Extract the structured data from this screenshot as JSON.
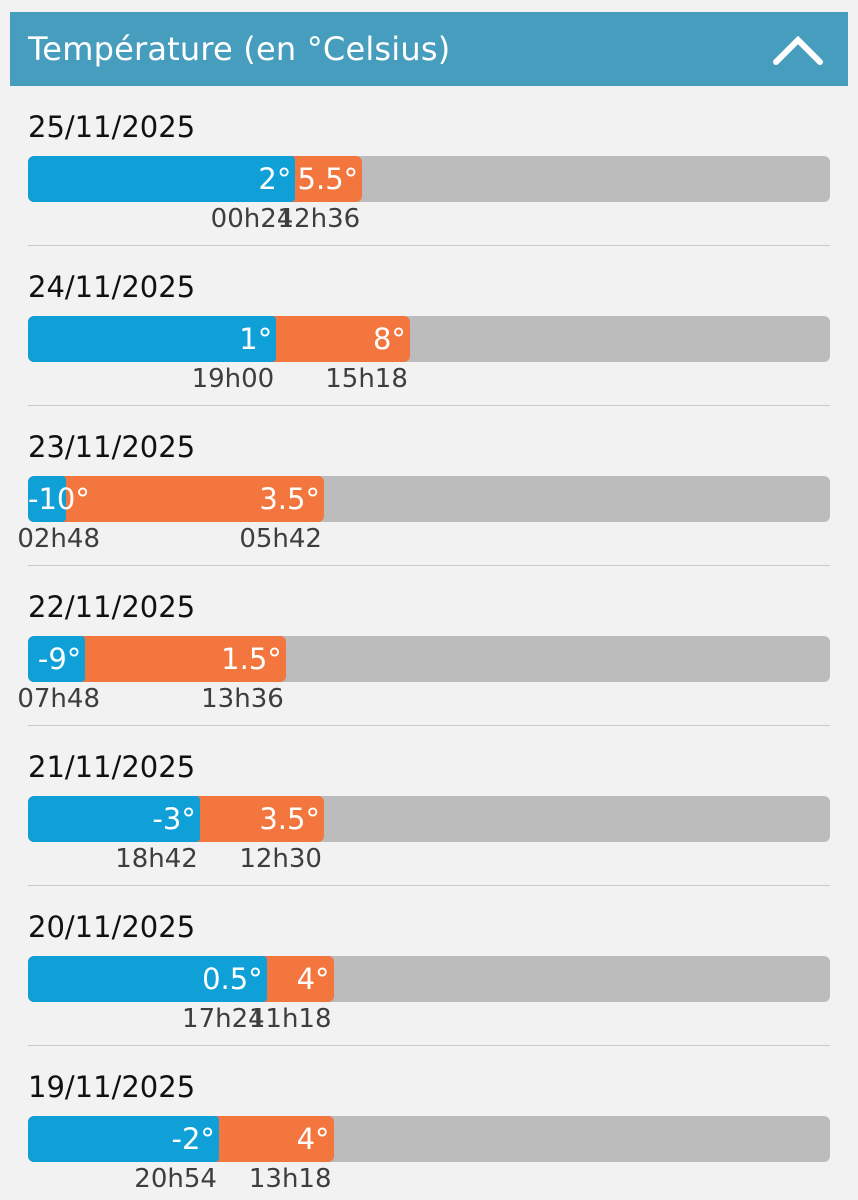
{
  "header": {
    "title": "Température (en °Celsius)",
    "collapse_icon": "chevron-up-icon"
  },
  "scale": {
    "min": -12,
    "max": 30
  },
  "colors": {
    "header": "#469dbd",
    "min_bar": "#0fa0d7",
    "max_bar": "#f2763e",
    "track": "#bcbcbc"
  },
  "days": [
    {
      "date": "25/11/2025",
      "min": 2,
      "min_label": "2°",
      "min_time": "00h24",
      "max": 5.5,
      "max_label": "5.5°",
      "max_time": "12h36"
    },
    {
      "date": "24/11/2025",
      "min": 1,
      "min_label": "1°",
      "min_time": "19h00",
      "max": 8,
      "max_label": "8°",
      "max_time": "15h18"
    },
    {
      "date": "23/11/2025",
      "min": -10,
      "min_label": "-10°",
      "min_time": "02h48",
      "max": 3.5,
      "max_label": "3.5°",
      "max_time": "05h42"
    },
    {
      "date": "22/11/2025",
      "min": -9,
      "min_label": "-9°",
      "min_time": "07h48",
      "max": 1.5,
      "max_label": "1.5°",
      "max_time": "13h36"
    },
    {
      "date": "21/11/2025",
      "min": -3,
      "min_label": "-3°",
      "min_time": "18h42",
      "max": 3.5,
      "max_label": "3.5°",
      "max_time": "12h30"
    },
    {
      "date": "20/11/2025",
      "min": 0.5,
      "min_label": "0.5°",
      "min_time": "17h24",
      "max": 4,
      "max_label": "4°",
      "max_time": "11h18"
    },
    {
      "date": "19/11/2025",
      "min": -2,
      "min_label": "-2°",
      "min_time": "20h54",
      "max": 4,
      "max_label": "4°",
      "max_time": "13h18"
    }
  ]
}
